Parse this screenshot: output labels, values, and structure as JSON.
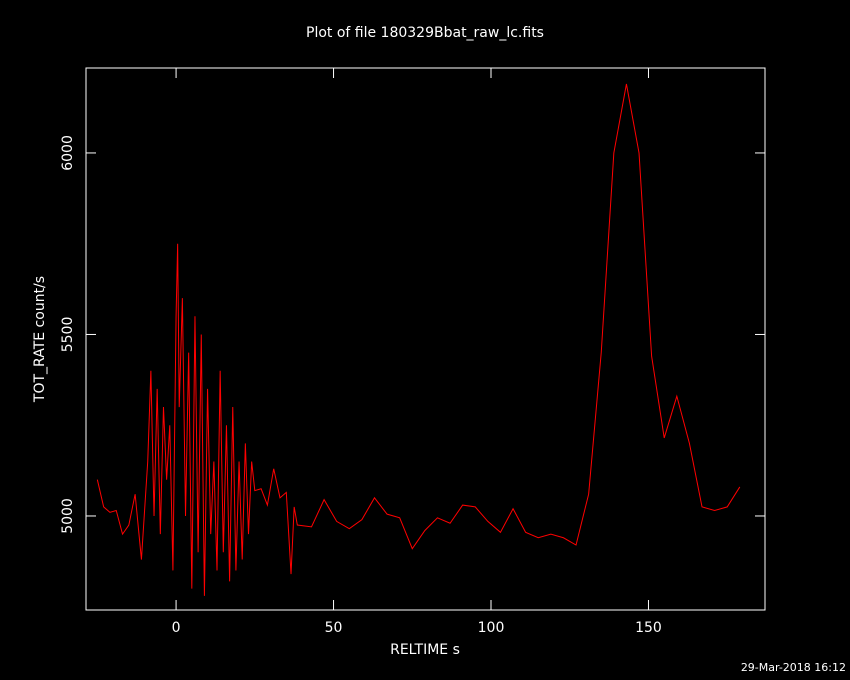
{
  "chart_data": {
    "type": "line",
    "title": "Plot of file 180329Bbat_raw_lc.fits",
    "x_label": "RELTIME  s",
    "y_label": "TOT_RATE  count/s",
    "footer": "29-Mar-2018 16:12",
    "x": [
      -25,
      -23,
      -21,
      -19,
      -17,
      -15,
      -13,
      -11,
      -9,
      -8,
      -7,
      -6,
      -5,
      -4,
      -3,
      -2,
      -1,
      0,
      0.5,
      1,
      2,
      3,
      4,
      5,
      6,
      7,
      8,
      9,
      10,
      11,
      12,
      13,
      14,
      15,
      16,
      17,
      18,
      19,
      20,
      21,
      22,
      23,
      24,
      25,
      27,
      29,
      31,
      33,
      35,
      36.5,
      37.5,
      38.5,
      43,
      47,
      51,
      55,
      59,
      63,
      67,
      71,
      75,
      79,
      83,
      87,
      91,
      95,
      99,
      103,
      107,
      111,
      115,
      119,
      123,
      127,
      131,
      135,
      139,
      143,
      147,
      151,
      155,
      159,
      163,
      167,
      171,
      175,
      179
    ],
    "series": [
      {
        "name": "TOT_RATE",
        "color": "#ff0000",
        "values": [
          5100,
          5025,
          5010,
          5015,
          4950,
          4975,
          5060,
          4880,
          5150,
          5400,
          5000,
          5350,
          4950,
          5300,
          5100,
          5250,
          4850,
          5550,
          5750,
          5300,
          5600,
          5000,
          5450,
          4800,
          5550,
          4900,
          5500,
          4780,
          5350,
          4950,
          5150,
          4850,
          5400,
          4900,
          5250,
          4820,
          5300,
          4850,
          5150,
          4880,
          5200,
          4950,
          5150,
          5070,
          5075,
          5030,
          5130,
          5050,
          5065,
          4840,
          5025,
          4975,
          4970,
          5045,
          4985,
          4965,
          4990,
          5050,
          5005,
          4995,
          4910,
          4960,
          4995,
          4980,
          5030,
          5025,
          4985,
          4955,
          5020,
          4955,
          4940,
          4950,
          4940,
          4920,
          5060,
          5450,
          6000,
          6190,
          6000,
          5440,
          5215,
          5330,
          5200,
          5025,
          5015,
          5025,
          5080
        ]
      }
    ],
    "xlim": [
      -28.6,
      187
    ],
    "ylim": [
      4741,
      6234
    ],
    "xticks": [
      0,
      50,
      100,
      150
    ],
    "yticks": [
      5000,
      5500,
      6000
    ],
    "grid": false
  }
}
